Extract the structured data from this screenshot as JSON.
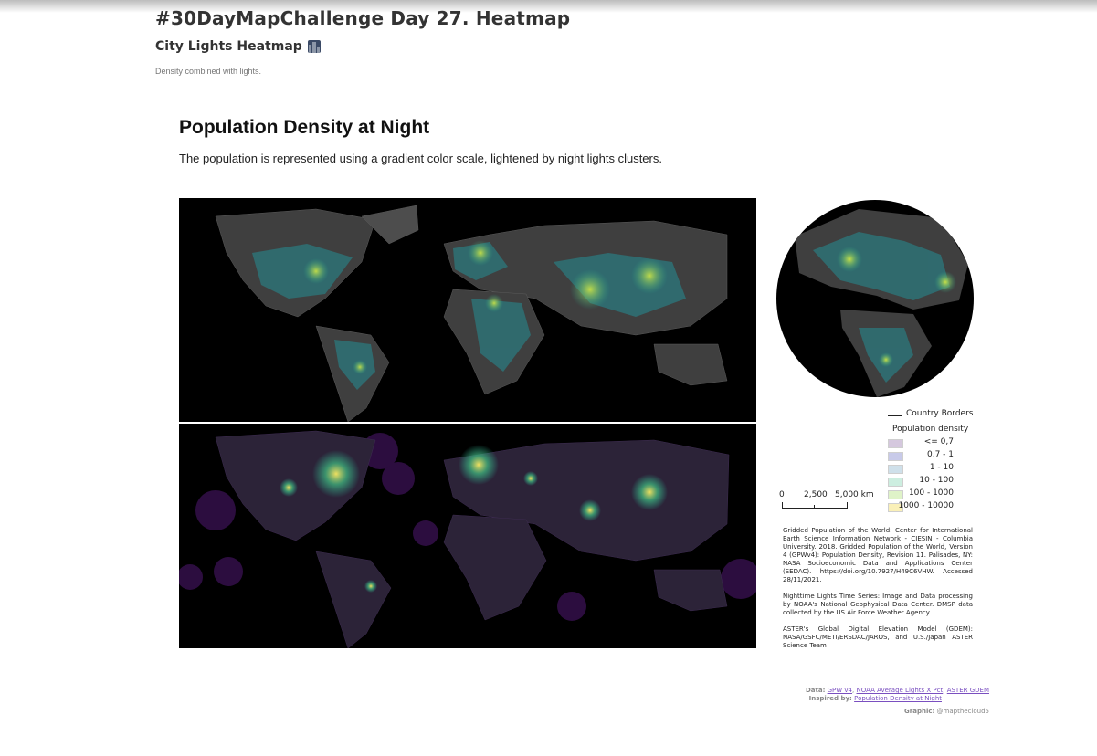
{
  "header": {
    "title": "#30DayMapChallenge Day 27. Heatmap",
    "subtitle": "City Lights Heatmap",
    "subtitle_icon": "night-city-icon",
    "description": "Density combined with lights."
  },
  "figure": {
    "title": "Population Density at Night",
    "description": "The population is represented using a gradient color scale, lightened by night lights clusters."
  },
  "legend": {
    "borders_label": "Country Borders",
    "density_title": "Population density",
    "classes": [
      {
        "label": "<= 0,7",
        "color": "#d5c8de"
      },
      {
        "label": "0,7 - 1",
        "color": "#c8cae9"
      },
      {
        "label": "1 - 10",
        "color": "#cfe0ea"
      },
      {
        "label": "10 - 100",
        "color": "#cdeee0"
      },
      {
        "label": "100 - 1000",
        "color": "#dff3c8"
      },
      {
        "label": "1000 - 10000",
        "color": "#faf0b8"
      }
    ]
  },
  "scale": {
    "labels": [
      "0",
      "2,500",
      "5,000 km"
    ]
  },
  "credits": [
    "Gridded Population of the World: Center for International Earth Science Information Network - CIESIN - Columbia University. 2018. Gridded Population of the World, Version 4 (GPWv4): Population Density, Revision 11. Palisades, NY: NASA Socioeconomic Data and Applications Center (SEDAC). https://doi.org/10.7927/H49C6VHW. Accessed 28/11/2021.",
    "Nighttime Lights Time Series: Image and Data processing by NOAA's National Geophysical Data Center. DMSP data collected by the US Air Force Weather Agency.",
    "ASTER's Global Digital Elevation Model (GDEM): NASA/GSFC/METI/ERSDAC/JAROS, and U.S./Japan ASTER Science Team"
  ],
  "footer": {
    "data_label": "Data:",
    "data_links": [
      "GPW v4",
      "NOAA Average Lights X Pct",
      "ASTER GDEM"
    ],
    "inspired_label": "Inspired by:",
    "inspired_link": "Population Density at Night",
    "graphic_label": "Graphic:",
    "graphic_author": "@mapthecloud5"
  },
  "colors": {
    "ocean": "#000000",
    "land_gray": "#3f3f3f",
    "viridis_low": "#2f6f73",
    "viridis_mid": "#2aa58a",
    "viridis_high": "#c8e048",
    "night_land": "#2c2338",
    "night_halo": "#2c0d3f",
    "hotspot": "#f0e060"
  }
}
